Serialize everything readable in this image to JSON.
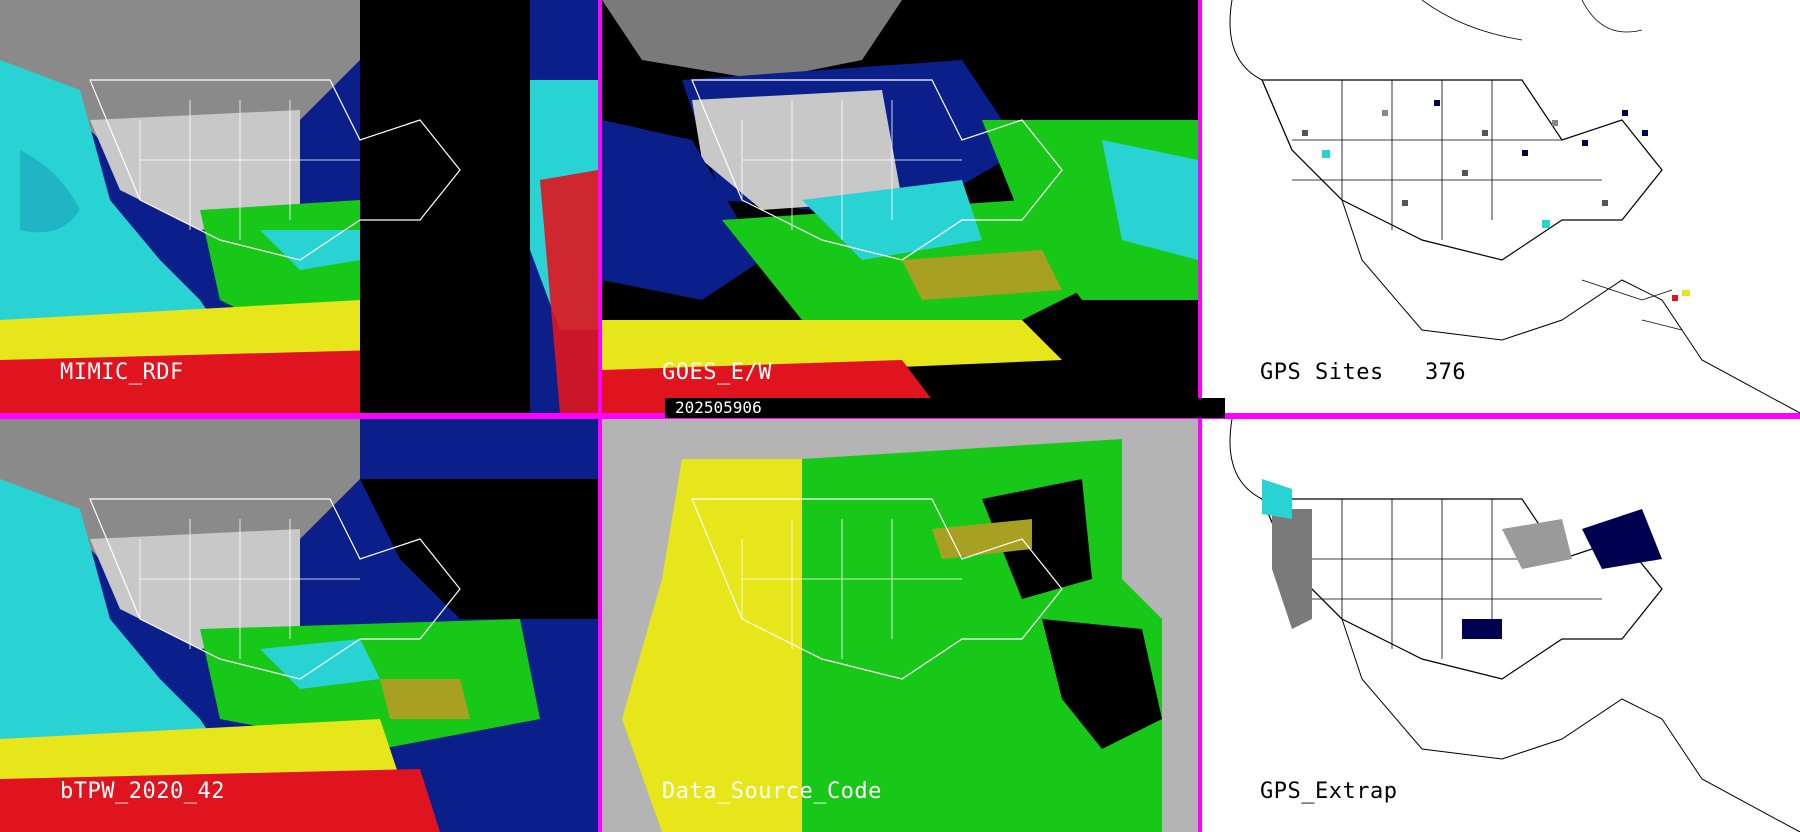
{
  "timestamp": "202505906",
  "panels": [
    {
      "label": "MIMIC_RDF",
      "theme": "dark"
    },
    {
      "label": "GOES_E/W",
      "theme": "dark"
    },
    {
      "label": "GPS Sites   376",
      "theme": "light"
    },
    {
      "label": "bTPW_2020_42",
      "theme": "dark"
    },
    {
      "label": "Data_Source_Code",
      "theme": "dark"
    },
    {
      "label": "GPS_Extrap",
      "theme": "light"
    }
  ],
  "colors": {
    "divider": "#ff00ff",
    "land_white": "#d8d8d8",
    "deep_blue": "#0a1f8a",
    "cyan": "#29d3d3",
    "green": "#18c818",
    "olive": "#a8a022",
    "yellow": "#e6e61a",
    "red": "#e0141e",
    "black": "#000000",
    "gray": "#b4b4b4"
  }
}
